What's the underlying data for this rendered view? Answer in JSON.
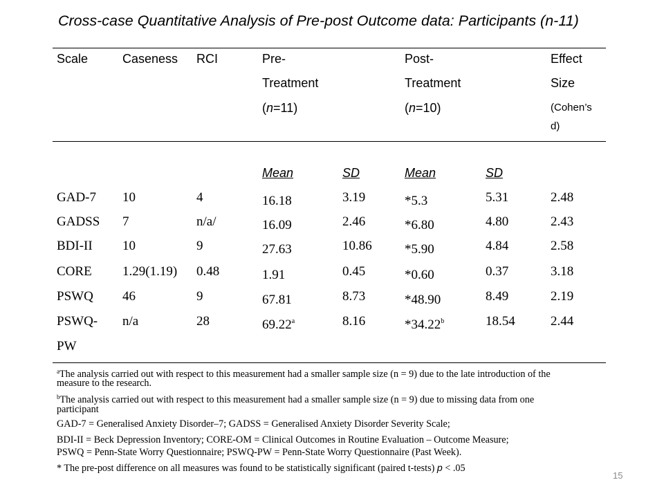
{
  "title": "Cross-case Quantitative Analysis of Pre-post Outcome data: Participants (n-11)",
  "header": {
    "scale": "Scale",
    "caseness": "Caseness",
    "rci": "RCI",
    "pre_line1": "Pre-",
    "pre_line2": "Treatment",
    "pre_line3_open": "(",
    "pre_n": "n",
    "pre_line3_rest": "=11)",
    "post_line1": "Post-",
    "post_line2": "Treatment",
    "post_line3_open": "(",
    "post_n": "n",
    "post_line3_rest": "=10)",
    "effect_line1": "Effect",
    "effect_line2": "Size",
    "effect_line3": "(Cohen’s",
    "effect_line4": "d)"
  },
  "subheader": {
    "pre_mean": "Mean",
    "pre_sd": "SD",
    "post_mean": "Mean",
    "post_sd": "SD"
  },
  "rows": [
    {
      "scale": "GAD-7",
      "caseness": "10",
      "rci": "4",
      "pre_mean": "16.18",
      "pre_mean_sup": "",
      "pre_sd": "3.19",
      "post_mean": "*5.3",
      "post_mean_sup": "",
      "post_sd": "5.31",
      "effect": "2.48"
    },
    {
      "scale": "GADSS",
      "caseness": "7",
      "rci": "n/a/",
      "pre_mean": "16.09",
      "pre_mean_sup": "",
      "pre_sd": "2.46",
      "post_mean": "*6.80",
      "post_mean_sup": "",
      "post_sd": "4.80",
      "effect": "2.43"
    },
    {
      "scale": "BDI-II",
      "caseness": "10",
      "rci": "9",
      "pre_mean": "27.63",
      "pre_mean_sup": "",
      "pre_sd": "10.86",
      "post_mean": "*5.90",
      "post_mean_sup": "",
      "post_sd": "4.84",
      "effect": "2.58"
    },
    {
      "scale": "CORE",
      "caseness": "1.29(1.19)",
      "rci": "0.48",
      "pre_mean": "1.91",
      "pre_mean_sup": "",
      "pre_sd": "0.45",
      "post_mean": "*0.60",
      "post_mean_sup": "",
      "post_sd": "0.37",
      "effect": "3.18"
    },
    {
      "scale": "PSWQ",
      "caseness": "46",
      "rci": "9",
      "pre_mean": "67.81",
      "pre_mean_sup": "",
      "pre_sd": "8.73",
      "post_mean": "*48.90",
      "post_mean_sup": "",
      "post_sd": "8.49",
      "effect": "2.19"
    },
    {
      "scale": "PSWQ-",
      "caseness": "n/a",
      "rci": "28",
      "pre_mean": "69.22",
      "pre_mean_sup": "a",
      "pre_sd": "8.16",
      "post_mean": "*34.22",
      "post_mean_sup": "b",
      "post_sd": "18.54",
      "effect": "2.44"
    },
    {
      "scale": "PW",
      "caseness": "",
      "rci": "",
      "pre_mean": "",
      "pre_mean_sup": "",
      "pre_sd": "",
      "post_mean": "",
      "post_mean_sup": "",
      "post_sd": "",
      "effect": ""
    }
  ],
  "footnotes": {
    "a_mark": "a",
    "a_line1": "The analysis carried out with respect to this measurement had a smaller sample size (n = 9) due to the late introduction of the",
    "a_line2": "measure to the research.",
    "b_mark": "b",
    "b_line1": "The analysis carried out with respect to this measurement had a smaller sample size (n = 9) due to missing data from one",
    "b_line2": "participant",
    "abbrev1": "GAD-7 = Generalised Anxiety Disorder–7; GADSS = Generalised Anxiety Disorder Severity Scale;",
    "abbrev2": "BDI-II = Beck Depression Inventory; CORE-OM = Clinical Outcomes in Routine Evaluation – Outcome Measure;",
    "abbrev3": "PSWQ = Penn-State Worry Questionnaire; PSWQ-PW = Penn-State Worry Questionnaire (Past Week).",
    "sig": "* The pre-post difference on all measures was found to be statistically significant (paired t-tests) ",
    "sig_p": "p",
    "sig_rest": " < .05"
  },
  "page_number": "15"
}
